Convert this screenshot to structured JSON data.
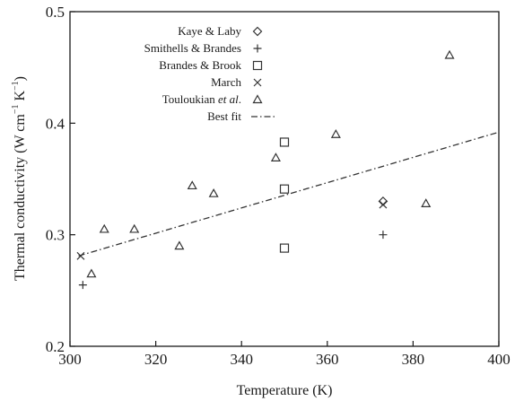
{
  "chart_data": {
    "type": "scatter",
    "xlabel": "Temperature (K)",
    "ylabel": {
      "prefix": "Thermal conductivity (W cm",
      "sup1": "−1",
      "mid": " K",
      "sup2": "−1",
      "suffix": ")"
    },
    "xlim": [
      300,
      400
    ],
    "ylim": [
      0.2,
      0.5
    ],
    "xticks": [
      300,
      320,
      340,
      360,
      380,
      400
    ],
    "yticks": [
      0.2,
      0.3,
      0.4,
      0.5
    ],
    "xtick_labels": [
      "300",
      "320",
      "340",
      "360",
      "380",
      "400"
    ],
    "ytick_labels": [
      "0.2",
      "0.3",
      "0.4",
      "0.5"
    ],
    "grid": false,
    "legend_position": "top-left",
    "series": [
      {
        "name": "Kaye & Laby",
        "marker": "diamond",
        "x": [
          373
        ],
        "y": [
          0.33
        ]
      },
      {
        "name": "Smithells & Brandes",
        "marker": "plus",
        "x": [
          303,
          373
        ],
        "y": [
          0.255,
          0.3
        ]
      },
      {
        "name": "Brandes & Brook",
        "marker": "square",
        "x": [
          350,
          350,
          350
        ],
        "y": [
          0.383,
          0.341,
          0.288
        ]
      },
      {
        "name": "March",
        "marker": "cross",
        "x": [
          302.5,
          373
        ],
        "y": [
          0.281,
          0.327
        ]
      },
      {
        "name": "Touloukian et al.",
        "name_parts": [
          "Touloukian ",
          "et al",
          "."
        ],
        "marker": "triangle",
        "x": [
          305,
          308,
          315,
          325.5,
          328.5,
          333.5,
          348,
          362,
          383,
          388.5
        ],
        "y": [
          0.265,
          0.305,
          0.305,
          0.29,
          0.344,
          0.337,
          0.369,
          0.39,
          0.328,
          0.461
        ]
      },
      {
        "name": "Best fit",
        "marker": "dashdot",
        "line": {
          "x": [
            302,
            400
          ],
          "y": [
            0.281,
            0.392
          ]
        }
      }
    ]
  }
}
